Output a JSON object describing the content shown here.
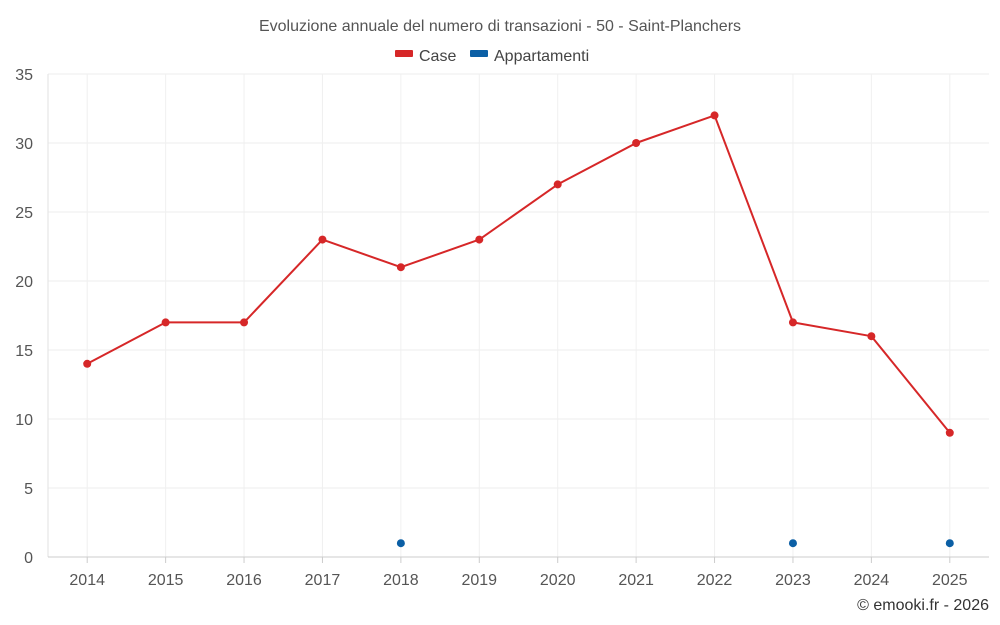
{
  "chart_data": {
    "type": "line",
    "title": "Evoluzione annuale del numero di transazioni - 50 - Saint-Planchers",
    "categories": [
      "2014",
      "2015",
      "2016",
      "2017",
      "2018",
      "2019",
      "2020",
      "2021",
      "2022",
      "2023",
      "2024",
      "2025"
    ],
    "ylim": [
      0,
      35
    ],
    "yticks": [
      0,
      5,
      10,
      15,
      20,
      25,
      30,
      35
    ],
    "grid": true,
    "legend_position": "top-center",
    "series": [
      {
        "name": "Case",
        "color": "#d62728",
        "values": [
          14,
          17,
          17,
          23,
          21,
          23,
          27,
          30,
          32,
          17,
          16,
          9
        ]
      },
      {
        "name": "Appartamenti",
        "color": "#0b5fa5",
        "values": [
          null,
          null,
          null,
          null,
          1,
          null,
          null,
          null,
          null,
          1,
          null,
          1
        ]
      }
    ],
    "credit": "© emooki.fr - 2026"
  }
}
